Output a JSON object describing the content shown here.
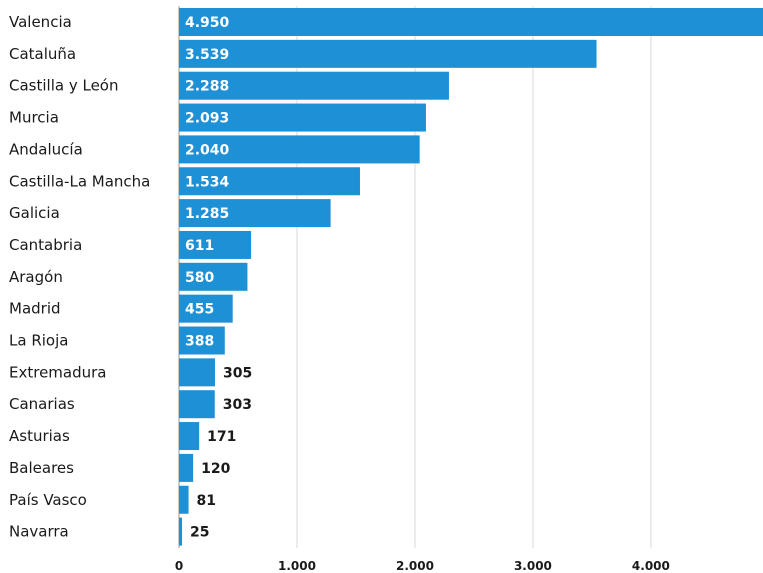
{
  "chart_data": {
    "type": "bar",
    "orientation": "horizontal",
    "categories": [
      "Valencia",
      "Cataluña",
      "Castilla y León",
      "Murcia",
      "Andalucía",
      "Castilla-La Mancha",
      "Galicia",
      "Cantabria",
      "Aragón",
      "Madrid",
      "La Rioja",
      "Extremadura",
      "Canarias",
      "Asturias",
      "Baleares",
      "País Vasco",
      "Navarra"
    ],
    "values": [
      4950,
      3539,
      2288,
      2093,
      2040,
      1534,
      1285,
      611,
      580,
      455,
      388,
      305,
      303,
      171,
      120,
      81,
      25
    ],
    "value_labels": [
      "4.950",
      "3.539",
      "2.288",
      "2.093",
      "2.040",
      "1.534",
      "1.285",
      "611",
      "580",
      "455",
      "388",
      "305",
      "303",
      "171",
      "120",
      "81",
      "25"
    ],
    "x_ticks": [
      0,
      1000,
      2000,
      3000,
      4000
    ],
    "x_tick_labels": [
      "0",
      "1.000",
      "2.000",
      "3.000",
      "4.000"
    ],
    "xlim": [
      0,
      4950
    ],
    "bar_color": "#1e90d6",
    "grid": true,
    "title": "",
    "xlabel": "",
    "ylabel": ""
  }
}
